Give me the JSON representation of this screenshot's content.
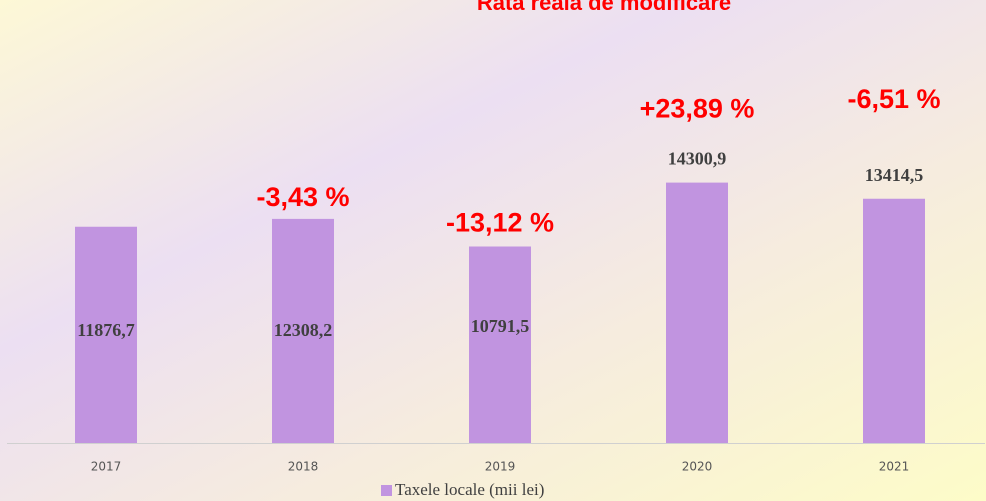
{
  "chart_data": {
    "type": "bar",
    "title": "Rata reală de modificare",
    "categories": [
      "2017",
      "2018",
      "2019",
      "2020",
      "2021"
    ],
    "series": [
      {
        "name": "Taxele locale (mii lei)",
        "color": "#c194e0",
        "values": [
          11876.7,
          12308.2,
          10791.5,
          14300.9,
          13414.5
        ],
        "value_labels": [
          "11876,7",
          "12308,2",
          "10791,5",
          "14300,9",
          "13414,5"
        ]
      }
    ],
    "rate_labels": [
      null,
      "-3,43 %",
      "-13,12 %",
      "+23,89 %",
      "-6,51 %"
    ],
    "ylim": [
      0,
      24000
    ]
  }
}
